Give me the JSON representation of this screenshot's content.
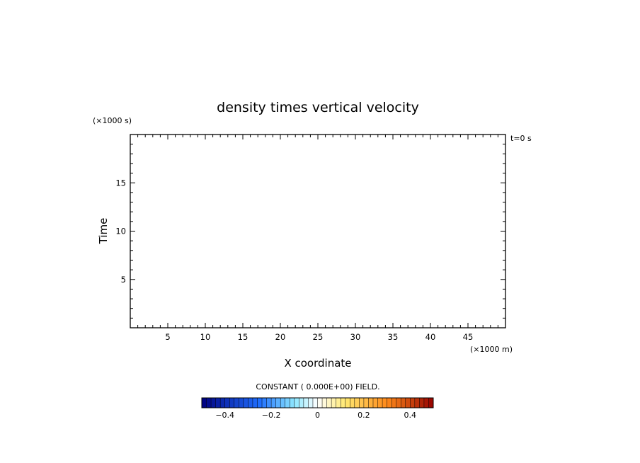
{
  "chart_data": {
    "type": "heatmap",
    "title": "density times vertical velocity",
    "xlabel": "X coordinate",
    "ylabel": "Time",
    "x_multiplier": "(×1000 m)",
    "y_multiplier": "(×1000 s)",
    "time_annotation": "t=0 s",
    "field_note": "CONSTANT ( 0.000E+00) FIELD.",
    "xlim": [
      0,
      50
    ],
    "ylim": [
      0,
      20
    ],
    "x_ticks": [
      5,
      10,
      15,
      20,
      25,
      30,
      35,
      40,
      45
    ],
    "y_ticks": [
      5,
      10,
      15
    ],
    "values": [],
    "colorbar": {
      "range": [
        -0.5,
        0.5
      ],
      "ticks": [
        -0.4,
        -0.2,
        0,
        0.2,
        0.4
      ],
      "tick_labels": [
        "−0.4",
        "−0.2",
        "0",
        "0.2",
        "0.4"
      ],
      "levels": 50,
      "colormap": "blue-white-red",
      "colors": {
        "dark_blue": "#000080",
        "blue": "#1f6fff",
        "cyan": "#8ee8ff",
        "white": "#ffffff",
        "yellow": "#ffe870",
        "orange": "#ff8a1a",
        "dark_red": "#960000"
      }
    }
  }
}
